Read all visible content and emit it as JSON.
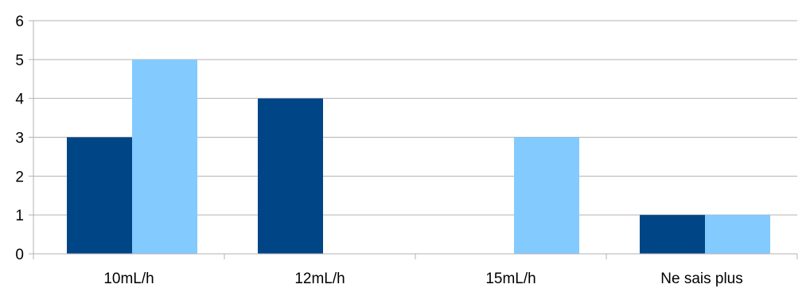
{
  "chart_data": {
    "type": "bar",
    "categories": [
      "10mL/h",
      "12mL/h",
      "15mL/h",
      "Ne sais plus"
    ],
    "series": [
      {
        "values": [
          3,
          4,
          0,
          1
        ],
        "color": "#004586"
      },
      {
        "values": [
          5,
          0,
          3,
          1
        ],
        "color": "#83caff"
      }
    ],
    "ylim": [
      0,
      6
    ],
    "yticks": [
      "0",
      "1",
      "2",
      "3",
      "4",
      "5",
      "6"
    ],
    "grid": true,
    "legend": "none"
  }
}
